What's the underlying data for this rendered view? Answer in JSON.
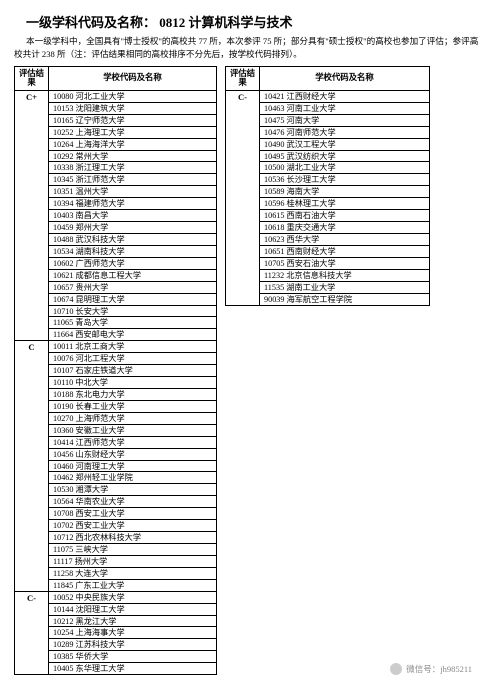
{
  "page": {
    "title": "一级学科代码及名称： 0812 计算机科学与技术",
    "intro": "本一级学科中，全国具有\"博士授权\"的高校共 77 所，本次参评 75 所；部分具有\"硕士授权\"的高校也参加了评估；参评高校共计 238 所（注：评估结果相同的高校排序不分先后，按学校代码排列）。",
    "col_grade": "评估结果",
    "col_school": "学校代码及名称"
  },
  "left_groups": [
    {
      "grade": "C+",
      "schools": [
        "10080 河北工业大学",
        "10153 沈阳建筑大学",
        "10165 辽宁师范大学",
        "10252 上海理工大学",
        "10264 上海海洋大学",
        "10292 常州大学",
        "10338 浙江理工大学",
        "10345 浙江师范大学",
        "10351 温州大学",
        "10394 福建师范大学",
        "10403 南昌大学",
        "10459 郑州大学",
        "10488 武汉科技大学",
        "10534 湖南科技大学",
        "10602 广西师范大学",
        "10621 成都信息工程大学",
        "10657 贵州大学",
        "10674 昆明理工大学",
        "10710 长安大学",
        "11065 青岛大学",
        "11664 西安邮电大学"
      ]
    },
    {
      "grade": "C",
      "schools": [
        "10011 北京工商大学",
        "10076 河北工程大学",
        "10107 石家庄铁道大学",
        "10110 中北大学",
        "10188 东北电力大学",
        "10190 长春工业大学",
        "10270 上海师范大学",
        "10360 安徽工业大学",
        "10414 江西师范大学",
        "10456 山东财经大学",
        "10460 河南理工大学",
        "10462 郑州轻工业学院",
        "10530 湘潭大学",
        "10564 华南农业大学",
        "10708 西安工业大学",
        "10702 西安工业大学",
        "10712 西北农林科技大学",
        "11075 三峡大学",
        "11117 扬州大学",
        "11258 大连大学",
        "11845 广东工业大学"
      ]
    },
    {
      "grade": "C-",
      "schools": [
        "10052 中央民族大学",
        "10144 沈阳理工大学",
        "10212 黑龙江大学",
        "10254 上海海事大学",
        "10289 江苏科技大学",
        "10385 华侨大学",
        "10405 东华理工大学"
      ]
    }
  ],
  "right_groups": [
    {
      "grade": "C-",
      "schools": [
        "10421 江西财经大学",
        "10463 河南工业大学",
        "10475 河南大学",
        "10476 河南师范大学",
        "10490 武汉工程大学",
        "10495 武汉纺织大学",
        "10500 湖北工业大学",
        "10536 长沙理工大学",
        "10589 海南大学",
        "10596 桂林理工大学",
        "10615 西南石油大学",
        "10618 重庆交通大学",
        "10623 西华大学",
        "10651 西南财经大学",
        "10705 西安石油大学",
        "11232 北京信息科技大学",
        "11535 湖南工业大学",
        "90039 海军航空工程学院"
      ]
    }
  ],
  "footer": {
    "label": "微信号：jh985211"
  }
}
